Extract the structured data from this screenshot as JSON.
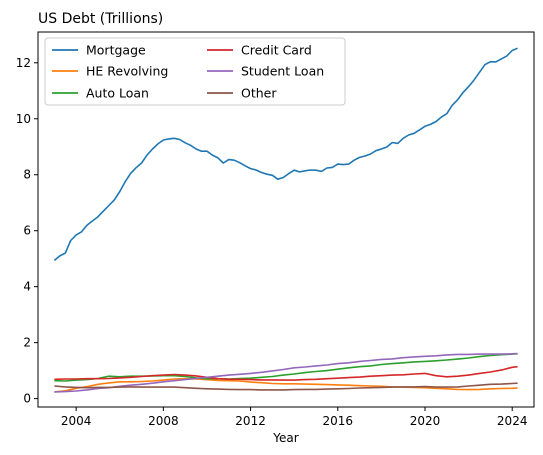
{
  "chart_data": {
    "type": "line",
    "title": "US Debt (Trillions)",
    "xlabel": "Year",
    "ylabel": "",
    "xlim": [
      2002.25,
      2025.0
    ],
    "ylim": [
      -0.3,
      13.1
    ],
    "xticks": [
      2004,
      2008,
      2012,
      2016,
      2020,
      2024
    ],
    "yticks": [
      0,
      2,
      4,
      6,
      8,
      10,
      12
    ],
    "grid": false,
    "legend": {
      "placement": "upper-left",
      "columns": 2
    },
    "series": [
      {
        "name": "Mortgage",
        "color": "#1f77b4",
        "x": [
          2003.0,
          2003.25,
          2003.5,
          2003.75,
          2004.0,
          2004.25,
          2004.5,
          2004.75,
          2005.0,
          2005.25,
          2005.5,
          2005.75,
          2006.0,
          2006.25,
          2006.5,
          2006.75,
          2007.0,
          2007.25,
          2007.5,
          2007.75,
          2008.0,
          2008.25,
          2008.5,
          2008.75,
          2009.0,
          2009.25,
          2009.5,
          2009.75,
          2010.0,
          2010.25,
          2010.5,
          2010.75,
          2011.0,
          2011.25,
          2011.5,
          2011.75,
          2012.0,
          2012.25,
          2012.5,
          2012.75,
          2013.0,
          2013.25,
          2013.5,
          2013.75,
          2014.0,
          2014.25,
          2014.5,
          2014.75,
          2015.0,
          2015.25,
          2015.5,
          2015.75,
          2016.0,
          2016.25,
          2016.5,
          2016.75,
          2017.0,
          2017.25,
          2017.5,
          2017.75,
          2018.0,
          2018.25,
          2018.5,
          2018.75,
          2019.0,
          2019.25,
          2019.5,
          2019.75,
          2020.0,
          2020.25,
          2020.5,
          2020.75,
          2021.0,
          2021.25,
          2021.5,
          2021.75,
          2022.0,
          2022.25,
          2022.5,
          2022.75,
          2023.0,
          2023.25,
          2023.5,
          2023.75,
          2024.0,
          2024.25
        ],
        "values": [
          4.94,
          5.1,
          5.2,
          5.65,
          5.85,
          5.96,
          6.2,
          6.35,
          6.5,
          6.7,
          6.9,
          7.1,
          7.4,
          7.75,
          8.05,
          8.25,
          8.42,
          8.7,
          8.92,
          9.1,
          9.24,
          9.28,
          9.3,
          9.26,
          9.14,
          9.05,
          8.92,
          8.84,
          8.84,
          8.7,
          8.6,
          8.42,
          8.54,
          8.52,
          8.43,
          8.32,
          8.22,
          8.17,
          8.08,
          8.02,
          7.98,
          7.84,
          7.9,
          8.04,
          8.16,
          8.1,
          8.14,
          8.17,
          8.16,
          8.12,
          8.24,
          8.26,
          8.38,
          8.36,
          8.38,
          8.52,
          8.62,
          8.67,
          8.74,
          8.86,
          8.92,
          8.99,
          9.15,
          9.12,
          9.3,
          9.42,
          9.48,
          9.6,
          9.73,
          9.8,
          9.9,
          10.06,
          10.18,
          10.48,
          10.68,
          10.94,
          11.15,
          11.38,
          11.66,
          11.93,
          12.04,
          12.03,
          12.14,
          12.24,
          12.44,
          12.52
        ]
      },
      {
        "name": "HE Revolving",
        "color": "#ff7f0e",
        "x": [
          2003.0,
          2003.5,
          2004.0,
          2004.5,
          2005.0,
          2005.5,
          2006.0,
          2006.5,
          2007.0,
          2007.5,
          2008.0,
          2008.5,
          2009.0,
          2009.5,
          2010.0,
          2010.5,
          2011.0,
          2011.5,
          2012.0,
          2012.5,
          2013.0,
          2013.5,
          2014.0,
          2014.5,
          2015.0,
          2015.5,
          2016.0,
          2016.5,
          2017.0,
          2017.5,
          2018.0,
          2018.5,
          2019.0,
          2019.5,
          2020.0,
          2020.5,
          2021.0,
          2021.5,
          2022.0,
          2022.5,
          2023.0,
          2023.5,
          2024.0,
          2024.25
        ],
        "values": [
          0.24,
          0.28,
          0.37,
          0.43,
          0.51,
          0.56,
          0.6,
          0.6,
          0.61,
          0.63,
          0.66,
          0.7,
          0.71,
          0.7,
          0.68,
          0.65,
          0.64,
          0.63,
          0.59,
          0.57,
          0.54,
          0.53,
          0.53,
          0.52,
          0.51,
          0.5,
          0.49,
          0.48,
          0.46,
          0.45,
          0.44,
          0.42,
          0.41,
          0.4,
          0.39,
          0.37,
          0.35,
          0.33,
          0.32,
          0.33,
          0.35,
          0.36,
          0.37,
          0.38
        ]
      },
      {
        "name": "Auto Loan",
        "color": "#2ca02c",
        "x": [
          2003.0,
          2003.5,
          2004.0,
          2004.5,
          2005.0,
          2005.5,
          2006.0,
          2006.5,
          2007.0,
          2007.5,
          2008.0,
          2008.5,
          2009.0,
          2009.5,
          2010.0,
          2010.5,
          2011.0,
          2011.5,
          2012.0,
          2012.5,
          2013.0,
          2013.5,
          2014.0,
          2014.5,
          2015.0,
          2015.5,
          2016.0,
          2016.5,
          2017.0,
          2017.5,
          2018.0,
          2018.5,
          2019.0,
          2019.5,
          2020.0,
          2020.5,
          2021.0,
          2021.5,
          2022.0,
          2022.5,
          2023.0,
          2023.5,
          2024.0,
          2024.25
        ],
        "values": [
          0.64,
          0.63,
          0.66,
          0.68,
          0.72,
          0.8,
          0.78,
          0.8,
          0.8,
          0.81,
          0.82,
          0.82,
          0.79,
          0.74,
          0.71,
          0.71,
          0.7,
          0.72,
          0.73,
          0.76,
          0.79,
          0.84,
          0.88,
          0.93,
          0.97,
          1.0,
          1.05,
          1.1,
          1.14,
          1.17,
          1.22,
          1.25,
          1.28,
          1.31,
          1.33,
          1.35,
          1.38,
          1.41,
          1.45,
          1.5,
          1.54,
          1.57,
          1.59,
          1.6
        ]
      },
      {
        "name": "Credit Card",
        "color": "#d62728",
        "x": [
          2003.0,
          2003.5,
          2004.0,
          2004.5,
          2005.0,
          2005.5,
          2006.0,
          2006.5,
          2007.0,
          2007.5,
          2008.0,
          2008.5,
          2009.0,
          2009.5,
          2010.0,
          2010.5,
          2011.0,
          2011.5,
          2012.0,
          2012.5,
          2013.0,
          2013.5,
          2014.0,
          2014.5,
          2015.0,
          2015.5,
          2016.0,
          2016.5,
          2017.0,
          2017.5,
          2018.0,
          2018.5,
          2019.0,
          2019.5,
          2020.0,
          2020.5,
          2021.0,
          2021.5,
          2022.0,
          2022.5,
          2023.0,
          2023.5,
          2024.0,
          2024.25
        ],
        "values": [
          0.69,
          0.7,
          0.7,
          0.71,
          0.71,
          0.72,
          0.74,
          0.76,
          0.79,
          0.82,
          0.84,
          0.86,
          0.84,
          0.81,
          0.76,
          0.71,
          0.69,
          0.69,
          0.68,
          0.67,
          0.67,
          0.66,
          0.66,
          0.68,
          0.69,
          0.71,
          0.73,
          0.75,
          0.77,
          0.8,
          0.82,
          0.84,
          0.85,
          0.88,
          0.9,
          0.82,
          0.78,
          0.8,
          0.84,
          0.9,
          0.95,
          1.02,
          1.12,
          1.14
        ]
      },
      {
        "name": "Student Loan",
        "color": "#9467bd",
        "x": [
          2003.0,
          2003.5,
          2004.0,
          2004.5,
          2005.0,
          2005.5,
          2006.0,
          2006.5,
          2007.0,
          2007.5,
          2008.0,
          2008.5,
          2009.0,
          2009.5,
          2010.0,
          2010.5,
          2011.0,
          2011.5,
          2012.0,
          2012.5,
          2013.0,
          2013.5,
          2014.0,
          2014.5,
          2015.0,
          2015.5,
          2016.0,
          2016.5,
          2017.0,
          2017.5,
          2018.0,
          2018.5,
          2019.0,
          2019.5,
          2020.0,
          2020.5,
          2021.0,
          2021.5,
          2022.0,
          2022.5,
          2023.0,
          2023.5,
          2024.0,
          2024.25
        ],
        "values": [
          0.24,
          0.25,
          0.27,
          0.31,
          0.36,
          0.39,
          0.44,
          0.48,
          0.51,
          0.55,
          0.6,
          0.64,
          0.68,
          0.72,
          0.76,
          0.8,
          0.84,
          0.87,
          0.9,
          0.94,
          0.99,
          1.04,
          1.1,
          1.13,
          1.17,
          1.2,
          1.25,
          1.28,
          1.33,
          1.36,
          1.4,
          1.42,
          1.46,
          1.49,
          1.51,
          1.53,
          1.56,
          1.58,
          1.58,
          1.59,
          1.59,
          1.59,
          1.6,
          1.61
        ]
      },
      {
        "name": "Other",
        "color": "#8c564b",
        "x": [
          2003.0,
          2003.5,
          2004.0,
          2004.5,
          2005.0,
          2005.5,
          2006.0,
          2006.5,
          2007.0,
          2007.5,
          2008.0,
          2008.5,
          2009.0,
          2009.5,
          2010.0,
          2010.5,
          2011.0,
          2011.5,
          2012.0,
          2012.5,
          2013.0,
          2013.5,
          2014.0,
          2014.5,
          2015.0,
          2015.5,
          2016.0,
          2016.5,
          2017.0,
          2017.5,
          2018.0,
          2018.5,
          2019.0,
          2019.5,
          2020.0,
          2020.5,
          2021.0,
          2021.5,
          2022.0,
          2022.5,
          2023.0,
          2023.5,
          2024.0,
          2024.25
        ],
        "values": [
          0.45,
          0.42,
          0.4,
          0.39,
          0.4,
          0.4,
          0.41,
          0.42,
          0.41,
          0.41,
          0.41,
          0.41,
          0.39,
          0.37,
          0.35,
          0.34,
          0.33,
          0.32,
          0.32,
          0.31,
          0.31,
          0.31,
          0.32,
          0.33,
          0.33,
          0.34,
          0.35,
          0.36,
          0.38,
          0.39,
          0.4,
          0.41,
          0.42,
          0.42,
          0.43,
          0.41,
          0.41,
          0.42,
          0.45,
          0.48,
          0.51,
          0.52,
          0.54,
          0.55
        ]
      }
    ]
  }
}
